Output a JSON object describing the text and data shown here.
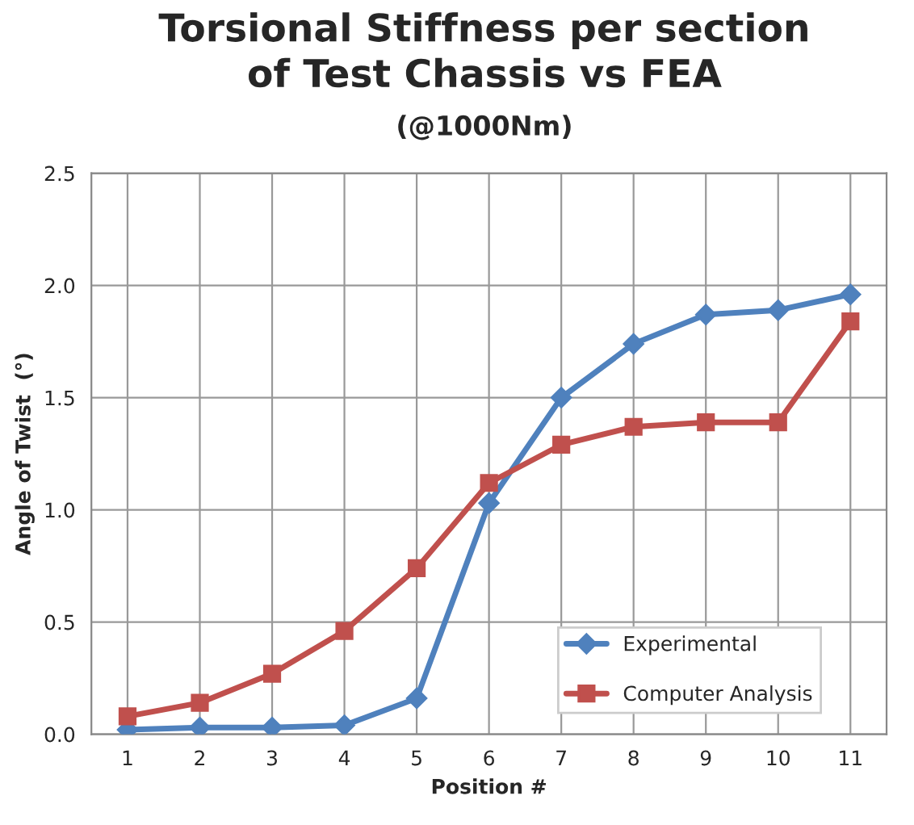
{
  "chart_data": {
    "type": "line",
    "title": "Torsional Stiffness per section\nof Test Chassis vs FEA",
    "subtitle": "(@1000Nm)",
    "xlabel": "Position #",
    "ylabel": "Angle of Twist  (°)",
    "categories": [
      "1",
      "2",
      "3",
      "4",
      "5",
      "6",
      "7",
      "8",
      "9",
      "10",
      "11"
    ],
    "series": [
      {
        "name": "Experimental",
        "color": "#4f81bd",
        "marker": "diamond",
        "values": [
          0.02,
          0.03,
          0.03,
          0.04,
          0.16,
          1.03,
          1.5,
          1.74,
          1.87,
          1.89,
          1.96
        ]
      },
      {
        "name": "Computer Analysis",
        "color": "#c0504d",
        "marker": "square",
        "values": [
          0.08,
          0.14,
          0.27,
          0.46,
          0.74,
          1.12,
          1.29,
          1.37,
          1.39,
          1.39,
          1.84
        ]
      }
    ],
    "ylim": [
      0,
      2.5
    ],
    "yticks": [
      {
        "value": 0,
        "label": "0.0"
      },
      {
        "value": 0.5,
        "label": "0.5"
      },
      {
        "value": 1,
        "label": "1.0"
      },
      {
        "value": 1.5,
        "label": "1.5"
      },
      {
        "value": 2,
        "label": "2.0"
      },
      {
        "value": 2.5,
        "label": "2.5"
      }
    ],
    "grid": true,
    "legend": "bottom right"
  }
}
